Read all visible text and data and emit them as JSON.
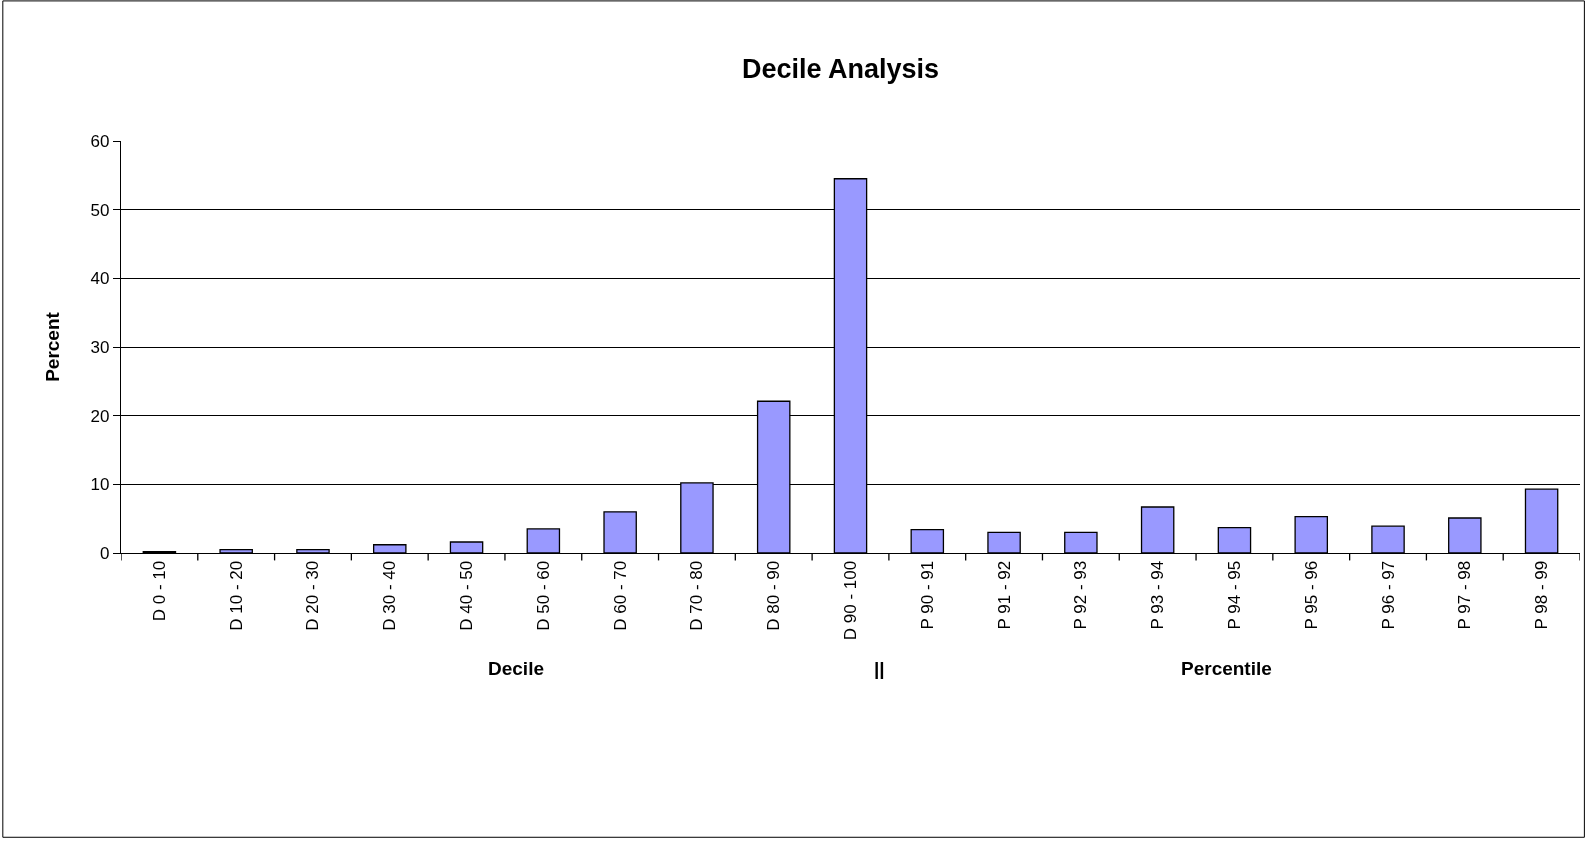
{
  "chart_data": {
    "type": "bar",
    "title": "Decile Analysis",
    "ylabel": "Percent",
    "categories": [
      "D 0 - 10",
      "D 10 - 20",
      "D 20 - 30",
      "D 30 - 40",
      "D 40 - 50",
      "D 50 - 60",
      "D 60 - 70",
      "D 70 - 80",
      "D 80 - 90",
      "D 90 - 100",
      "P 90 - 91",
      "P 91 - 92",
      "P 92 - 93",
      "P 93 - 94",
      "P 94 - 95",
      "P 95 - 96",
      "P 96 - 97",
      "P 97 - 98",
      "P 98 - 99"
    ],
    "values": [
      0.2,
      0.5,
      0.5,
      1.2,
      1.6,
      3.5,
      6.0,
      10.2,
      22.1,
      54.5,
      3.4,
      3.0,
      3.0,
      6.7,
      3.7,
      5.3,
      3.9,
      5.1,
      9.3
    ],
    "color": "#9999ff",
    "ylim": [
      0,
      60
    ],
    "yticks": [
      0,
      10,
      20,
      30,
      40,
      50,
      60
    ],
    "grid": "y",
    "annotations": [
      "Decile",
      "||",
      "Percentile"
    ]
  }
}
